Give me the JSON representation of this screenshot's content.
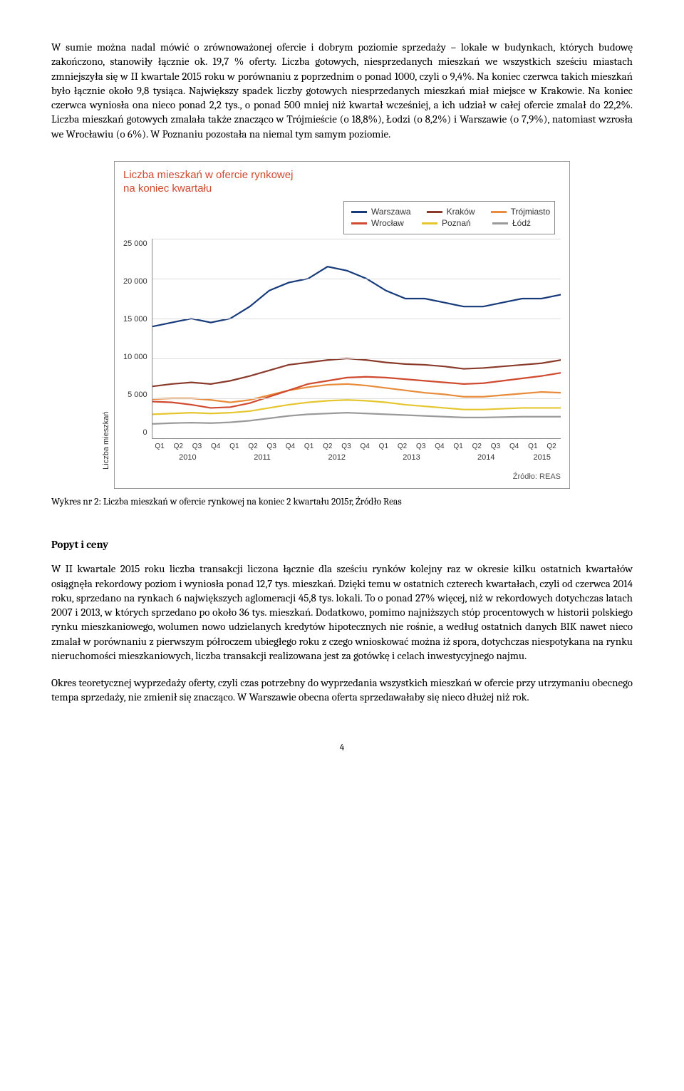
{
  "para1": "W sumie można nadal mówić o zrównoważonej ofercie i dobrym poziomie sprzedaży – lokale w budynkach, których budowę zakończono, stanowiły łącznie ok. 19,7 % oferty. Liczba gotowych, niesprzedanych mieszkań we wszystkich sześciu miastach zmniejszyła się w II kwartale 2015 roku w porównaniu z poprzednim o ponad 1000, czyli o 9,4%. Na koniec czerwca takich mieszkań było łącznie około 9,8 tysiąca. Największy spadek liczby gotowych niesprzedanych mieszkań miał miejsce w Krakowie. Na koniec czerwca wyniosła ona nieco ponad 2,2 tys., o ponad 500 mniej niż kwartał wcześniej, a ich udział w całej ofercie zmalał do 22,2%. Liczba mieszkań gotowych zmalała także znacząco w Trójmieście (o 18,8%), Łodzi (o 8,2%) i Warszawie (o 7,9%), natomiast wzrosła we Wrocławiu (o 6%). W Poznaniu pozostała na niemal tym samym poziomie.",
  "chart": {
    "title_l1": "Liczba mieszkań w ofercie rynkowej",
    "title_l2": "na koniec kwartału",
    "ylabel": "Liczba mieszkań",
    "source": "Źródło: REAS",
    "yticks": [
      "25 000",
      "20 000",
      "15 000",
      "10 000",
      "5 000",
      "0"
    ],
    "ymax": 25000,
    "xticks": [
      "Q1",
      "Q2",
      "Q3",
      "Q4",
      "Q1",
      "Q2",
      "Q3",
      "Q4",
      "Q1",
      "Q2",
      "Q3",
      "Q4",
      "Q1",
      "Q2",
      "Q3",
      "Q4",
      "Q1",
      "Q2",
      "Q3",
      "Q4",
      "Q1",
      "Q2"
    ],
    "years": [
      {
        "label": "2010",
        "span": 4
      },
      {
        "label": "2011",
        "span": 4
      },
      {
        "label": "2012",
        "span": 4
      },
      {
        "label": "2013",
        "span": 4
      },
      {
        "label": "2014",
        "span": 4
      },
      {
        "label": "2015",
        "span": 2
      }
    ],
    "series": [
      {
        "name": "Warszawa",
        "color": "#163a7a",
        "values": [
          14000,
          14500,
          15000,
          14500,
          15000,
          16500,
          18500,
          19500,
          20000,
          21500,
          21000,
          20000,
          18500,
          17500,
          17500,
          17000,
          16500,
          16500,
          17000,
          17500,
          17500,
          18000
        ]
      },
      {
        "name": "Kraków",
        "color": "#8a3a2a",
        "values": [
          6500,
          6800,
          7000,
          6800,
          7200,
          7800,
          8500,
          9200,
          9500,
          9800,
          10000,
          9800,
          9500,
          9300,
          9200,
          9000,
          8700,
          8800,
          9000,
          9200,
          9400,
          9800
        ]
      },
      {
        "name": "Trójmiasto",
        "color": "#e88b3a",
        "values": [
          4900,
          5000,
          5000,
          4800,
          4500,
          4800,
          5400,
          6000,
          6400,
          6700,
          6800,
          6600,
          6300,
          6000,
          5700,
          5500,
          5200,
          5200,
          5400,
          5600,
          5800,
          5700
        ]
      },
      {
        "name": "Wrocław",
        "color": "#d04a2f",
        "values": [
          4600,
          4500,
          4200,
          3800,
          3900,
          4400,
          5200,
          6000,
          6800,
          7200,
          7600,
          7700,
          7600,
          7400,
          7200,
          7000,
          6800,
          6900,
          7200,
          7500,
          7800,
          8200
        ]
      },
      {
        "name": "Poznań",
        "color": "#e6c62f",
        "values": [
          3000,
          3100,
          3200,
          3100,
          3200,
          3400,
          3800,
          4200,
          4500,
          4700,
          4800,
          4700,
          4500,
          4200,
          4000,
          3800,
          3600,
          3600,
          3700,
          3800,
          3800,
          3800
        ]
      },
      {
        "name": "Łódź",
        "color": "#9a9a9a",
        "values": [
          1800,
          1900,
          1950,
          1900,
          2000,
          2200,
          2500,
          2800,
          3000,
          3100,
          3200,
          3100,
          3000,
          2900,
          2800,
          2700,
          2600,
          2600,
          2650,
          2700,
          2700,
          2700
        ]
      }
    ]
  },
  "caption": "Wykres nr 2: Liczba mieszkań w ofercie rynkowej na koniec 2 kwartału 2015r, Źródło Reas",
  "section_heading": "Popyt i ceny",
  "para2": "W II kwartale 2015 roku liczba transakcji liczona łącznie dla sześciu rynków kolejny raz w okresie kilku ostatnich kwartałów osiągnęła rekordowy poziom i wyniosła ponad 12,7 tys. mieszkań. Dzięki temu w ostatnich czterech kwartałach, czyli od czerwca 2014 roku, sprzedano na rynkach 6 największych aglomeracji 45,8 tys. lokali. To o ponad 27% więcej, niż w rekordowych dotychczas latach 2007 i 2013, w których sprzedano po około 36 tys. mieszkań. Dodatkowo, pomimo najniższych stóp procentowych w historii polskiego rynku mieszkaniowego, wolumen nowo udzielanych kredytów hipotecznych nie rośnie, a według ostatnich danych BIK nawet nieco zmalał w porównaniu z pierwszym półroczem ubiegłego roku z czego wnioskować można iż spora, dotychczas niespotykana na rynku nieruchomości mieszkaniowych, liczba transakcji realizowana jest za gotówkę i celach inwestycyjnego najmu.",
  "para3": "Okres teoretycznej wyprzedaży oferty, czyli czas potrzebny do wyprzedania wszystkich mieszkań w ofercie przy utrzymaniu obecnego tempa sprzedaży, nie zmienił się znacząco. W Warszawie obecna oferta sprzedawałaby się nieco dłużej niż rok.",
  "page_number": "4"
}
